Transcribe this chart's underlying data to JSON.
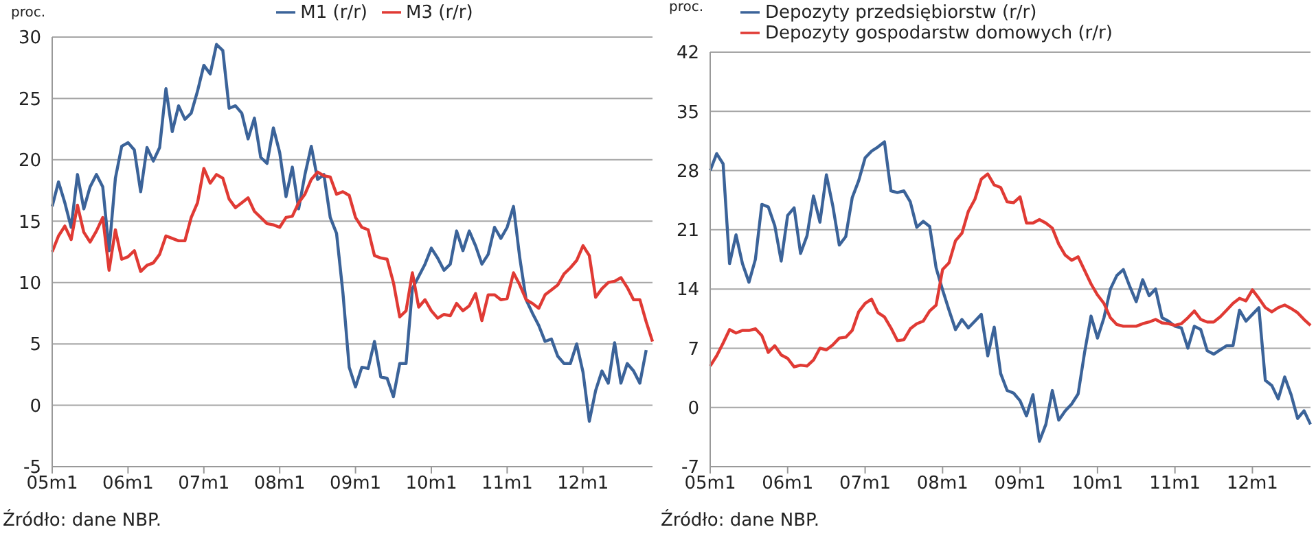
{
  "chart_data": [
    {
      "type": "line",
      "ylabel": "proc.",
      "categories": [
        "05m1",
        null,
        null,
        null,
        null,
        null,
        null,
        null,
        null,
        null,
        null,
        null,
        "06m1",
        null,
        null,
        null,
        null,
        null,
        null,
        null,
        null,
        null,
        null,
        null,
        "07m1",
        null,
        null,
        null,
        null,
        null,
        null,
        null,
        null,
        null,
        null,
        null,
        "08m1",
        null,
        null,
        null,
        null,
        null,
        null,
        null,
        null,
        null,
        null,
        null,
        "09m1",
        null,
        null,
        null,
        null,
        null,
        null,
        null,
        null,
        null,
        null,
        null,
        "10m1",
        null,
        null,
        null,
        null,
        null,
        null,
        null,
        null,
        null,
        null,
        null,
        "11m1",
        null,
        null,
        null,
        null,
        null,
        null,
        null,
        null,
        null,
        null,
        null,
        "12m1",
        null,
        null,
        null,
        null,
        null,
        null,
        null,
        null,
        null,
        null,
        null
      ],
      "series": [
        {
          "name": "M1 (r/r)",
          "color": "#3b6399",
          "values": [
            16.2,
            18.2,
            16.5,
            14.5,
            18.8,
            16,
            17.8,
            18.8,
            17.8,
            12.6,
            18.5,
            21.1,
            21.4,
            20.8,
            17.4,
            21,
            19.9,
            21,
            25.8,
            22.3,
            24.4,
            23.3,
            23.8,
            25.6,
            27.7,
            27,
            29.4,
            28.9,
            24.2,
            24.4,
            23.8,
            21.7,
            23.4,
            20.2,
            19.7,
            22.6,
            20.6,
            17,
            19.4,
            16,
            18.8,
            21.1,
            18.4,
            18.8,
            15.3,
            14,
            9.2,
            3.1,
            1.5,
            3.1,
            3,
            5.2,
            2.3,
            2.2,
            0.7,
            3.4,
            3.4,
            9.5,
            10.5,
            11.5,
            12.8,
            12,
            11,
            11.5,
            14.2,
            12.6,
            14.2,
            13,
            11.5,
            12.3,
            14.5,
            13.6,
            14.5,
            16.2,
            12,
            8.6,
            7.5,
            6.5,
            5.2,
            5.4,
            4,
            3.4,
            3.4,
            5,
            2.7,
            -1.3,
            1.2,
            2.8,
            1.8,
            5.1,
            1.8,
            3.4,
            2.8,
            1.8,
            4.5,
            null
          ]
        },
        {
          "name": "M3 (r/r)",
          "color": "#e03a34",
          "values": [
            12.5,
            13.8,
            14.6,
            13.5,
            16.3,
            14.1,
            13.3,
            14.2,
            15.3,
            11,
            14.3,
            11.9,
            12.1,
            12.6,
            10.9,
            11.4,
            11.6,
            12.3,
            13.8,
            13.6,
            13.4,
            13.4,
            15.3,
            16.5,
            19.3,
            18.1,
            18.8,
            18.5,
            16.8,
            16.1,
            16.5,
            16.9,
            15.8,
            15.3,
            14.8,
            14.7,
            14.5,
            15.3,
            15.4,
            16.5,
            17.2,
            18.4,
            19,
            18.7,
            18.6,
            17.2,
            17.4,
            17.1,
            15.3,
            14.5,
            14.3,
            12.2,
            12,
            11.9,
            10,
            7.2,
            7.7,
            10.8,
            8,
            8.6,
            7.7,
            7.1,
            7.4,
            7.3,
            8.3,
            7.7,
            8.1,
            9.1,
            6.9,
            9,
            9,
            8.6,
            8.7,
            10.8,
            9.8,
            8.6,
            8.3,
            7.9,
            9,
            9.4,
            9.8,
            10.7,
            11.2,
            11.8,
            13,
            12.2,
            8.8,
            9.5,
            10,
            10.1,
            10.4,
            9.6,
            8.6,
            8.6,
            6.8,
            5.2
          ]
        }
      ],
      "ylim": [
        -5,
        30
      ],
      "yticks": [
        -5,
        0,
        5,
        10,
        15,
        20,
        25,
        30
      ],
      "grid": "y",
      "legend": "top",
      "annotations": [
        "Źródło: dane NBP."
      ]
    },
    {
      "type": "line",
      "ylabel": "proc.",
      "categories": [
        "05m1",
        null,
        null,
        null,
        null,
        null,
        null,
        null,
        null,
        null,
        null,
        null,
        "06m1",
        null,
        null,
        null,
        null,
        null,
        null,
        null,
        null,
        null,
        null,
        null,
        "07m1",
        null,
        null,
        null,
        null,
        null,
        null,
        null,
        null,
        null,
        null,
        null,
        "08m1",
        null,
        null,
        null,
        null,
        null,
        null,
        null,
        null,
        null,
        null,
        null,
        "09m1",
        null,
        null,
        null,
        null,
        null,
        null,
        null,
        null,
        null,
        null,
        null,
        "10m1",
        null,
        null,
        null,
        null,
        null,
        null,
        null,
        null,
        null,
        null,
        null,
        "11m1",
        null,
        null,
        null,
        null,
        null,
        null,
        null,
        null,
        null,
        null,
        null,
        "12m1",
        null,
        null,
        null,
        null,
        null,
        null,
        null,
        null,
        null
      ],
      "series": [
        {
          "name": "Depozyty przedsiębiorstw (r/r)",
          "color": "#3b6399",
          "values": [
            28,
            30,
            28.8,
            17,
            20.4,
            17,
            14.8,
            17.5,
            24,
            23.7,
            21.5,
            17.3,
            22.7,
            23.6,
            18.2,
            20.3,
            25,
            21.9,
            27.5,
            23.8,
            19.2,
            20.2,
            24.8,
            26.8,
            29.5,
            30.3,
            30.8,
            31.4,
            25.6,
            25.4,
            25.6,
            24.3,
            21.3,
            22,
            21.4,
            16.5,
            13.9,
            11.5,
            9.2,
            10.4,
            9.4,
            10.2,
            11,
            6.1,
            9.5,
            4,
            2,
            1.7,
            0.8,
            -1,
            1.5,
            -4,
            -2,
            2,
            -1.5,
            -0.4,
            0.4,
            1.6,
            6.5,
            10.8,
            8.2,
            10.6,
            14,
            15.6,
            16.3,
            14.3,
            12.5,
            15.1,
            13.2,
            14,
            10.6,
            10.2,
            9.6,
            9.4,
            7,
            9.6,
            9.2,
            6.7,
            6.3,
            6.8,
            7.3,
            7.3,
            11.5,
            10.2,
            11,
            11.8,
            3.2,
            2.6,
            1,
            3.6,
            1.5,
            -1.3,
            -0.4,
            -2
          ]
        },
        {
          "name": "Depozyty gospodarstw domowych (r/r)",
          "color": "#e03a34",
          "values": [
            4.9,
            6.1,
            7.6,
            9.2,
            8.8,
            9.1,
            9.1,
            9.3,
            8.5,
            6.5,
            7.3,
            6.2,
            5.8,
            4.8,
            5,
            4.9,
            5.6,
            7,
            6.8,
            7.4,
            8.2,
            8.3,
            9.1,
            11.3,
            12.3,
            12.8,
            11.2,
            10.7,
            9.4,
            7.9,
            8,
            9.3,
            9.9,
            10.2,
            11.4,
            12.1,
            16.3,
            17.1,
            19.7,
            20.6,
            23.2,
            24.6,
            27,
            27.6,
            26.3,
            26,
            24.3,
            24.2,
            24.9,
            21.8,
            21.8,
            22.2,
            21.8,
            21.2,
            19.3,
            18,
            17.4,
            17.8,
            16.2,
            14.6,
            13.3,
            12.3,
            10.6,
            9.8,
            9.6,
            9.6,
            9.6,
            9.9,
            10.1,
            10.4,
            10,
            9.9,
            9.7,
            9.9,
            10.6,
            11.4,
            10.4,
            10.1,
            10.1,
            10.7,
            11.5,
            12.3,
            12.9,
            12.6,
            13.9,
            12.9,
            11.8,
            11.3,
            11.8,
            12.1,
            11.7,
            11.2,
            10.4,
            9.7
          ]
        }
      ],
      "ylim": [
        -7,
        42
      ],
      "yticks": [
        -7,
        0,
        7,
        14,
        21,
        28,
        35,
        42
      ],
      "grid": "y",
      "legend": "top",
      "annotations": [
        "Źródło: dane NBP."
      ]
    }
  ]
}
